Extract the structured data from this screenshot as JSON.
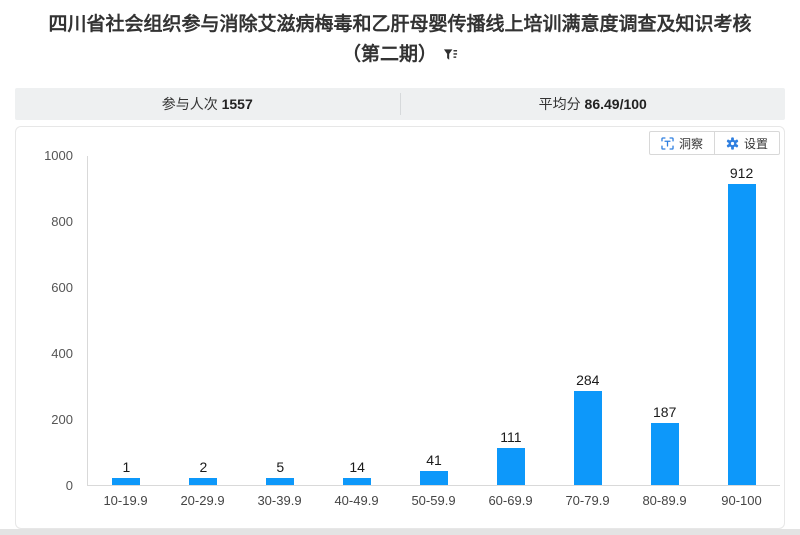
{
  "page": {
    "title_line1": "四川省社会组织参与消除艾滋病梅毒和乙肝母婴传播线上培训满意度调查及知识考核",
    "title_line2": "（第二期）"
  },
  "stats": {
    "participants_label": "参与人次",
    "participants_value": "1557",
    "average_label": "平均分",
    "average_value": "86.49/100"
  },
  "toolbar": {
    "insight_label": "洞察",
    "settings_label": "设置",
    "icon_color": "#2e7fe0",
    "icons": [
      "insight-scan-icon",
      "gear-icon"
    ]
  },
  "chart_data": {
    "type": "bar",
    "title": "",
    "xlabel": "",
    "ylabel": "",
    "categories": [
      "10-19.9",
      "20-29.9",
      "30-39.9",
      "40-49.9",
      "50-59.9",
      "60-69.9",
      "70-79.9",
      "80-89.9",
      "90-100"
    ],
    "values": [
      1,
      2,
      5,
      14,
      41,
      111,
      284,
      187,
      912
    ],
    "ylim": [
      0,
      1000
    ],
    "yticks": [
      0,
      200,
      400,
      600,
      800,
      1000
    ],
    "bar_color": "#0d98fa",
    "grid": false,
    "legend": false,
    "value_labels": true
  }
}
